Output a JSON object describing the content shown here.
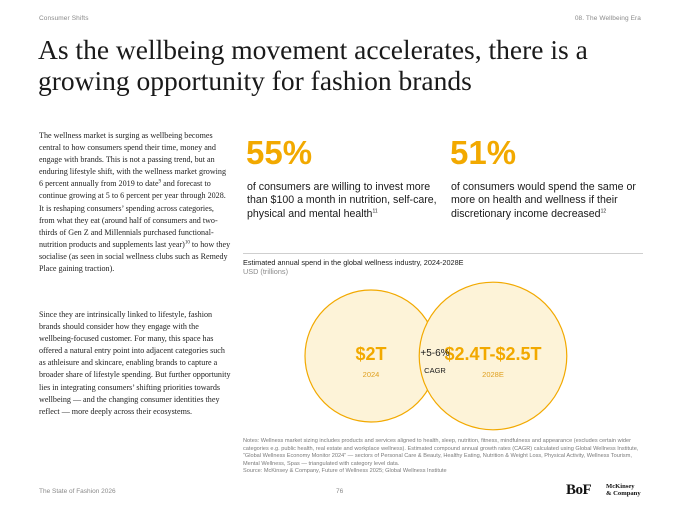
{
  "header": {
    "left": "Consumer Shifts",
    "right": "08. The Wellbeing Era"
  },
  "title": "As the wellbeing movement accelerates, there is a growing opportunity for fashion brands",
  "body": {
    "para1_a": "The wellness market is surging as wellbeing becomes central to how consumers spend their time, money and engage with brands. This is not a passing trend, but an enduring lifestyle shift, with the wellness market growing 6 percent annually from 2019 to date",
    "para1_sup1": "9",
    "para1_b": " and forecast to continue growing at 5 to 6 percent per year through 2028. It is reshaping consumers’ spending across categories, from what they eat (around half of consumers and two-thirds of Gen Z and Millennials purchased functional-nutrition products and supplements last year)",
    "para1_sup2": "10",
    "para1_c": " to how they socialise (as seen in social wellness clubs such as Remedy Place gaining traction).",
    "para2": "Since they are intrinsically linked to lifestyle, fashion brands should consider how they engage with the wellbeing-focused customer. For many, this space has offered a natural entry point into adjacent categories such as athleisure and skincare, enabling brands to capture a broader share of lifestyle spending. But further opportunity lies in integrating consumers’ shifting priorities towards wellbeing — and the changing consumer identities they reflect — more deeply across their ecosystems."
  },
  "stats": [
    {
      "value": "55%",
      "desc": "of consumers are willing to invest more than $100 a month in nutrition, self-care, physical and mental health",
      "sup": "11"
    },
    {
      "value": "51%",
      "desc": "of consumers would spend the same or more on health and wellness if their discretionary income decreased",
      "sup": "12"
    }
  ],
  "chart_data": {
    "type": "bubble",
    "title": "Estimated annual spend in the global wellness industry, 2024-2028E",
    "unit": "USD (trillions)",
    "points": [
      {
        "label": "$2T",
        "year": "2024",
        "value_low": 2,
        "value_high": 2
      },
      {
        "label": "$2.4T-$2.5T",
        "year": "2028E",
        "value_low": 2.4,
        "value_high": 2.5
      }
    ],
    "growth": {
      "value": "+5-6%",
      "label": "CAGR"
    },
    "colors": {
      "accent": "#f2a900",
      "fill": "#fdf1d2",
      "fill_light": "#fff7e4"
    }
  },
  "notes": {
    "line1": "Notes: Wellness market sizing includes products and services aligned to health, sleep, nutrition, fitness, mindfulness and appearance (excludes certain wider categories e.g. public health, real estate and workplace wellness). Estimated compound annual growth rates (CAGR) calculated using Global Wellness Institute, “Global Wellness Economy Monitor 2024” — sectors of Personal Care & Beauty, Healthy Eating, Nutrition & Weight Loss, Physical Activity, Wellness Tourism, Mental Wellness, Spas — triangulated with category level data.",
    "line2": "Source: McKinsey & Company, Future of Wellness 2025; Global Wellness Institute"
  },
  "footer": {
    "left": "The State of Fashion 2026",
    "page": "76",
    "bof_logo": "BoF",
    "mck_logo_1": "McKinsey",
    "mck_logo_2": "& Company"
  }
}
